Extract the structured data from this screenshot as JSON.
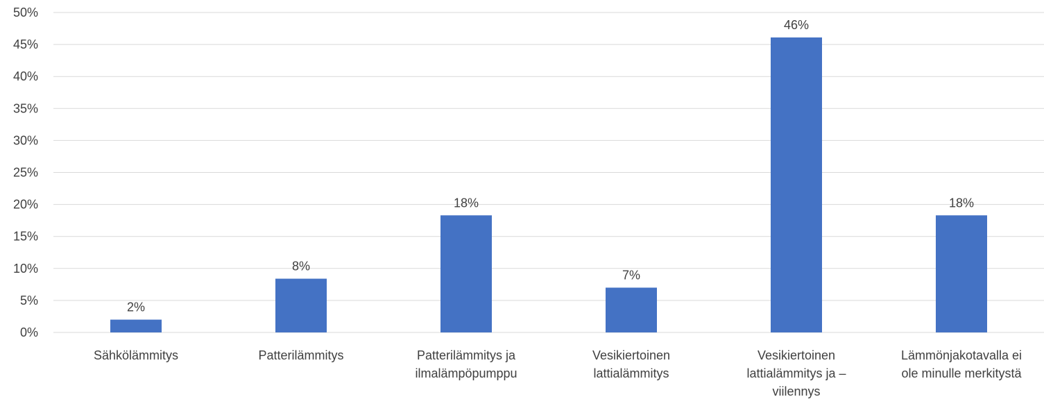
{
  "chart_data": {
    "type": "bar",
    "title": "",
    "xlabel": "",
    "ylabel": "",
    "categories": [
      [
        "Sähkölämmitys"
      ],
      [
        "Patterilämmitys"
      ],
      [
        "Patterilämmitys ja",
        "ilmalämpöpumppu"
      ],
      [
        "Vesikiertoinen",
        "lattialämmitys"
      ],
      [
        "Vesikiertoinen",
        "lattialämmitys ja –",
        "viilennys"
      ],
      [
        "Lämmönjakotavalla ei",
        "ole minulle merkitystä"
      ]
    ],
    "values": [
      2,
      8.4,
      18.3,
      7,
      46.1,
      18.3
    ],
    "data_labels": [
      "2%",
      "8%",
      "18%",
      "7%",
      "46%",
      "18%"
    ],
    "ylim": [
      0,
      50
    ],
    "yticks": [
      0,
      5,
      10,
      15,
      20,
      25,
      30,
      35,
      40,
      45,
      50
    ],
    "ytick_labels": [
      "0%",
      "5%",
      "10%",
      "15%",
      "20%",
      "25%",
      "30%",
      "35%",
      "40%",
      "45%",
      "50%"
    ],
    "grid": true,
    "legend": "none",
    "bar_color": "#4472c4",
    "grid_color": "#d9d9d9",
    "text_color": "#404040"
  }
}
